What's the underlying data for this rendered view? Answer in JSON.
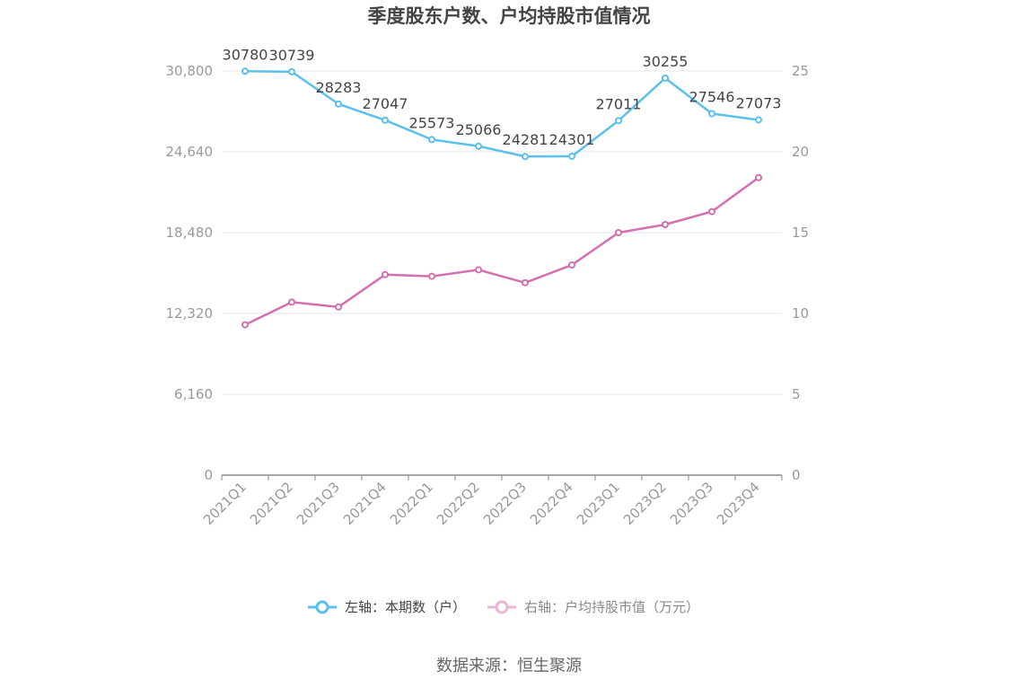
{
  "chart_data": {
    "type": "line",
    "title": "季度股东户数、户均持股市值情况",
    "categories": [
      "2021Q1",
      "2021Q2",
      "2021Q3",
      "2021Q4",
      "2022Q1",
      "2022Q2",
      "2022Q3",
      "2022Q4",
      "2023Q1",
      "2023Q2",
      "2023Q3",
      "2023Q4"
    ],
    "left_axis": {
      "min": 0,
      "max": 30800,
      "ticks": [
        "0",
        "6,160",
        "12,320",
        "18,480",
        "24,640",
        "30,800"
      ]
    },
    "right_axis": {
      "min": 0,
      "max": 25,
      "ticks": [
        "0",
        "5",
        "10",
        "15",
        "20",
        "25"
      ]
    },
    "series": [
      {
        "name": "左轴：本期数（户）",
        "axis": "left",
        "color": "#5bc0eb",
        "values": [
          30780,
          30739,
          28283,
          27047,
          25573,
          25066,
          24281,
          24301,
          27011,
          30255,
          27546,
          27073
        ],
        "labels": [
          "30780",
          "30739",
          "28283",
          "27047",
          "25573",
          "25066",
          "24281",
          "24301",
          "27011",
          "30255",
          "27546",
          "27073"
        ]
      },
      {
        "name": "右轴：户均持股市值（万元）",
        "axis": "right",
        "color": "#d46fb0",
        "legend_color": "#efb5d8",
        "values": [
          9.3,
          10.7,
          10.4,
          12.4,
          12.3,
          12.7,
          11.9,
          13.0,
          15.0,
          15.5,
          16.3,
          18.4
        ]
      }
    ],
    "grid": true,
    "legend_position": "bottom"
  },
  "source": "数据来源：恒生聚源"
}
